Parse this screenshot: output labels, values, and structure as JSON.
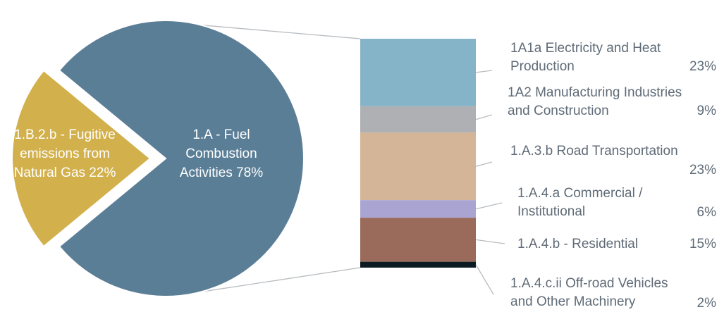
{
  "chart_data": {
    "type": "bar-of-pie",
    "pie": {
      "slices": [
        {
          "label_lines": [
            "1.A -  Fuel",
            "Combustion",
            "Activities 78%"
          ],
          "value": 78,
          "color": "#5b7e97"
        },
        {
          "label_lines": [
            "1.B.2.b - Fugitive",
            "emissions from",
            "Natural Gas 22%"
          ],
          "value": 22,
          "color": "#d2b04c"
        }
      ]
    },
    "bar": {
      "segments": [
        {
          "label_lines": [
            "1A1a  Electricity and Heat",
            "Production"
          ],
          "pct": "23%",
          "value": 23,
          "color": "#85b4c8"
        },
        {
          "label_lines": [
            "1A2 Manufacturing Industries",
            "and Construction"
          ],
          "pct": "9%",
          "value": 9,
          "color": "#aeb0b3"
        },
        {
          "label_lines": [
            "1.A.3.b  Road Transportation",
            ""
          ],
          "pct": "23%",
          "value": 23,
          "color": "#d4b597"
        },
        {
          "label_lines": [
            "1.A.4.a  Commercial /",
            "Institutional"
          ],
          "pct": "6%",
          "value": 6,
          "color": "#a9a4d2"
        },
        {
          "label_lines": [
            "1.A.4.b - Residential"
          ],
          "pct": "15%",
          "value": 15,
          "color": "#9a6a5a"
        },
        {
          "label_lines": [
            "1.A.4.c.ii Off-road Vehicles",
            "and Other Machinery"
          ],
          "pct": "2%",
          "value": 2,
          "color": "#0c1a22"
        }
      ]
    },
    "colors": {
      "label_text": "#5f6b77",
      "leader_line": "#b8bcc0",
      "pie_label_text": "#ffffff"
    }
  }
}
